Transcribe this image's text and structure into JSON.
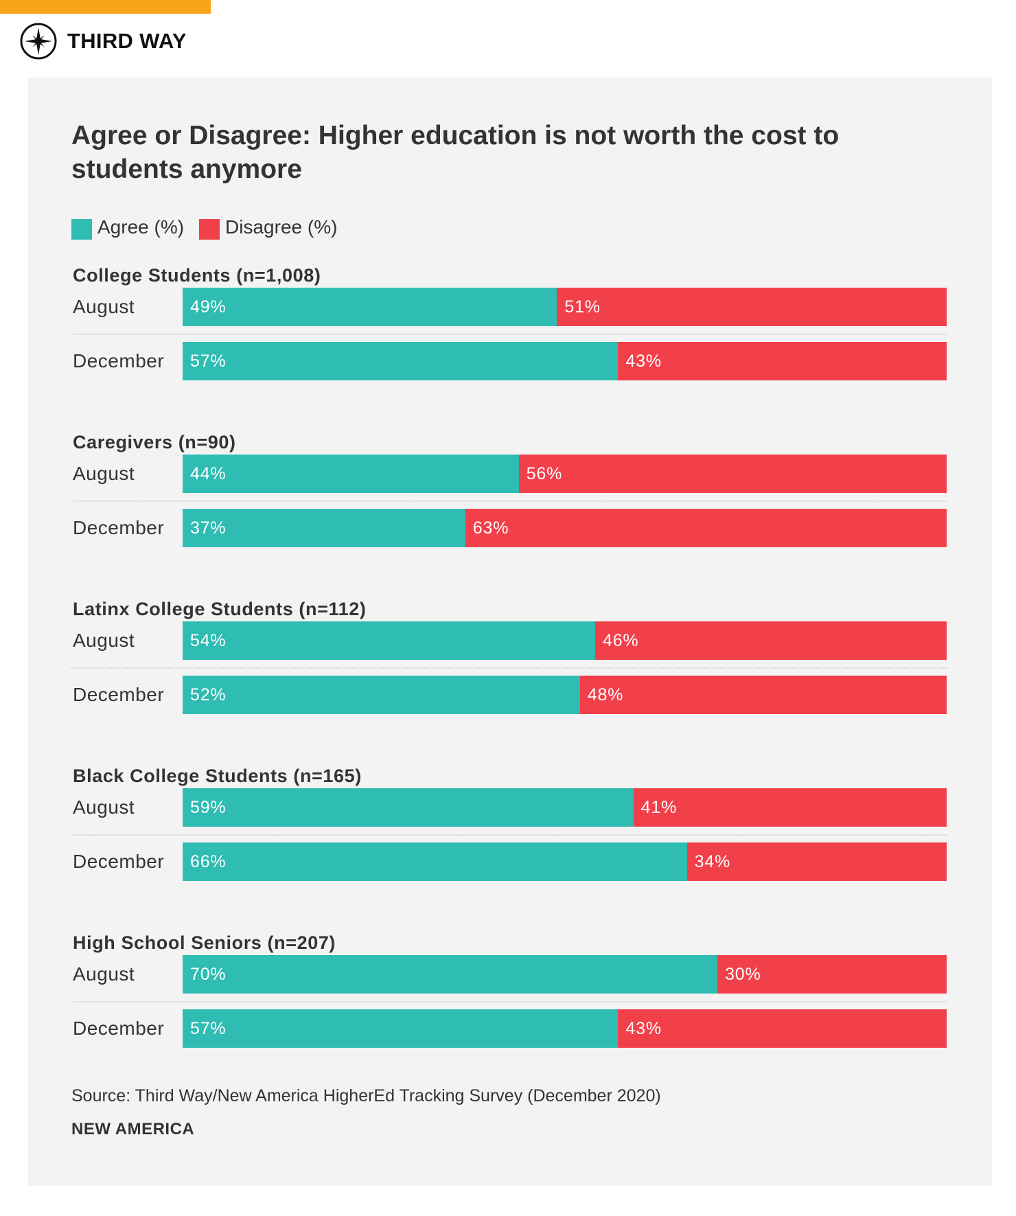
{
  "brand": {
    "name": "THIRD WAY",
    "logo_icon": "compass-star-icon",
    "accent_color": "#f8a51c"
  },
  "chart_data": {
    "type": "bar",
    "stacked": true,
    "orientation": "horizontal",
    "title": "Agree or Disagree: Higher education is not worth the cost to students anymore",
    "legend": [
      {
        "name": "Agree (%)",
        "color": "#2fbcb2"
      },
      {
        "name": "Disagree (%)",
        "color": "#f2404b"
      }
    ],
    "legend_position": "top-left",
    "xlim": [
      0,
      100
    ],
    "groups": [
      {
        "name": "College Students (n=1,008)",
        "rows": [
          {
            "label": "August",
            "agree": 49,
            "disagree": 51
          },
          {
            "label": "December",
            "agree": 57,
            "disagree": 43
          }
        ]
      },
      {
        "name": "Caregivers (n=90)",
        "rows": [
          {
            "label": "August",
            "agree": 44,
            "disagree": 56
          },
          {
            "label": "December",
            "agree": 37,
            "disagree": 63
          }
        ]
      },
      {
        "name": "Latinx College Students (n=112)",
        "rows": [
          {
            "label": "August",
            "agree": 54,
            "disagree": 46
          },
          {
            "label": "December",
            "agree": 52,
            "disagree": 48
          }
        ]
      },
      {
        "name": "Black College Students (n=165)",
        "rows": [
          {
            "label": "August",
            "agree": 59,
            "disagree": 41
          },
          {
            "label": "December",
            "agree": 66,
            "disagree": 34
          }
        ]
      },
      {
        "name": "High School Seniors (n=207)",
        "rows": [
          {
            "label": "August",
            "agree": 70,
            "disagree": 30
          },
          {
            "label": "December",
            "agree": 57,
            "disagree": 43
          }
        ]
      }
    ]
  },
  "source": "Source: Third Way/New America HigherEd Tracking Survey (December 2020)",
  "footer_brand": "NEW AMERICA"
}
